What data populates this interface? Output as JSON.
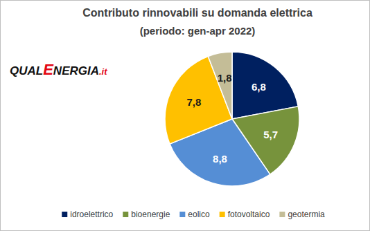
{
  "chart_data": {
    "type": "pie",
    "title": "Contributo rinnovabili su domanda elettrica",
    "subtitle": "(periodo: gen-apr 2022)",
    "annotations": [
      "QUALENERGIA.it"
    ],
    "categories": [
      "idroelettrico",
      "bioenergie",
      "eolico",
      "fotovoltaico",
      "geotermia"
    ],
    "values": [
      6.8,
      5.7,
      8.8,
      7.8,
      1.8
    ],
    "value_labels": [
      "6,8",
      "5,7",
      "8,8",
      "7,8",
      "1,8"
    ],
    "colors": [
      "#002060",
      "#77933c",
      "#558ed5",
      "#ffc000",
      "#c4bd97"
    ],
    "data_labels": true,
    "legend": "bottom"
  }
}
